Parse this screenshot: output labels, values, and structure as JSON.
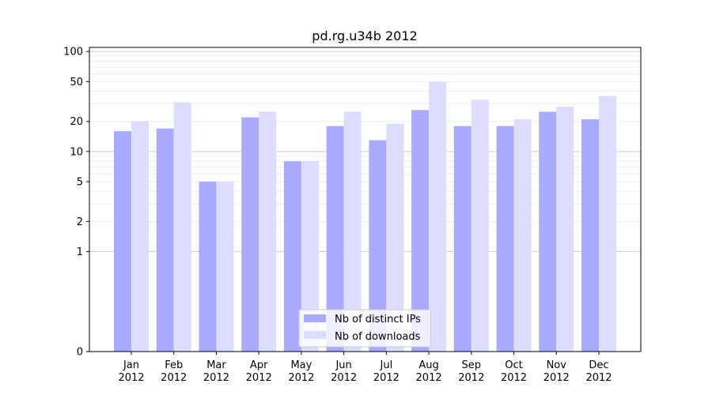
{
  "chart_data": {
    "type": "bar",
    "title": "pd.rg.u34b 2012",
    "scale": "symlog",
    "categories": [
      [
        "Jan",
        "2012"
      ],
      [
        "Feb",
        "2012"
      ],
      [
        "Mar",
        "2012"
      ],
      [
        "Apr",
        "2012"
      ],
      [
        "May",
        "2012"
      ],
      [
        "Jun",
        "2012"
      ],
      [
        "Jul",
        "2012"
      ],
      [
        "Aug",
        "2012"
      ],
      [
        "Sep",
        "2012"
      ],
      [
        "Oct",
        "2012"
      ],
      [
        "Nov",
        "2012"
      ],
      [
        "Dec",
        "2012"
      ]
    ],
    "y_ticks": [
      0,
      1,
      2,
      5,
      10,
      20,
      50,
      100
    ],
    "ylim": [
      0,
      110
    ],
    "grid": true,
    "legend_position": "bottom-center",
    "series": [
      {
        "name": "Nb of distinct IPs",
        "color": "#aaaaff",
        "values": [
          16,
          17,
          5,
          22,
          8,
          18,
          13,
          26,
          18,
          18,
          25,
          21
        ]
      },
      {
        "name": "Nb of downloads",
        "color": "#ddddff",
        "values": [
          20,
          31,
          5,
          25,
          8,
          25,
          19,
          50,
          33,
          21,
          28,
          36
        ]
      }
    ]
  }
}
